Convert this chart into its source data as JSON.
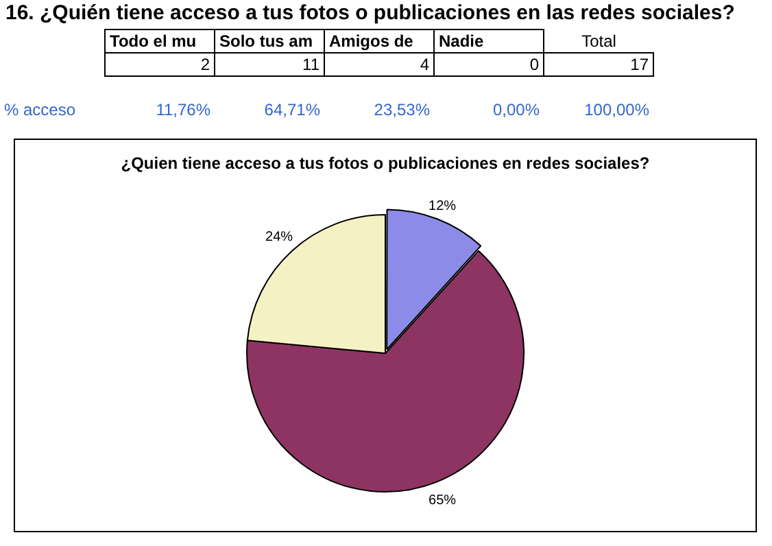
{
  "chart_data": {
    "type": "pie",
    "title": "16. ¿Quién tiene acceso a tus fotos o publicaciones en las redes sociales?",
    "subtitle": "¿Quien tiene acceso a tus fotos o publicaciones en redes sociales?",
    "categories": [
      null,
      null,
      null,
      null
    ],
    "values": [
      11.76,
      64.71,
      23.53,
      0
    ],
    "colors": [
      "#8c8ce8",
      "#8e3462",
      "#f4f2c4",
      "#3c9bd6"
    ],
    "value_labels": [
      "12%",
      "65%",
      "24%",
      null
    ],
    "annotations": [
      "Todo el mu",
      "Solo tus am",
      "Amigos de",
      "Nadie",
      "Total",
      "2",
      "11",
      "4",
      "0",
      "17",
      "% acceso",
      "11,76%",
      "64,71%",
      "23,53%",
      "0,00%",
      "100,00%"
    ],
    "legend": false
  }
}
